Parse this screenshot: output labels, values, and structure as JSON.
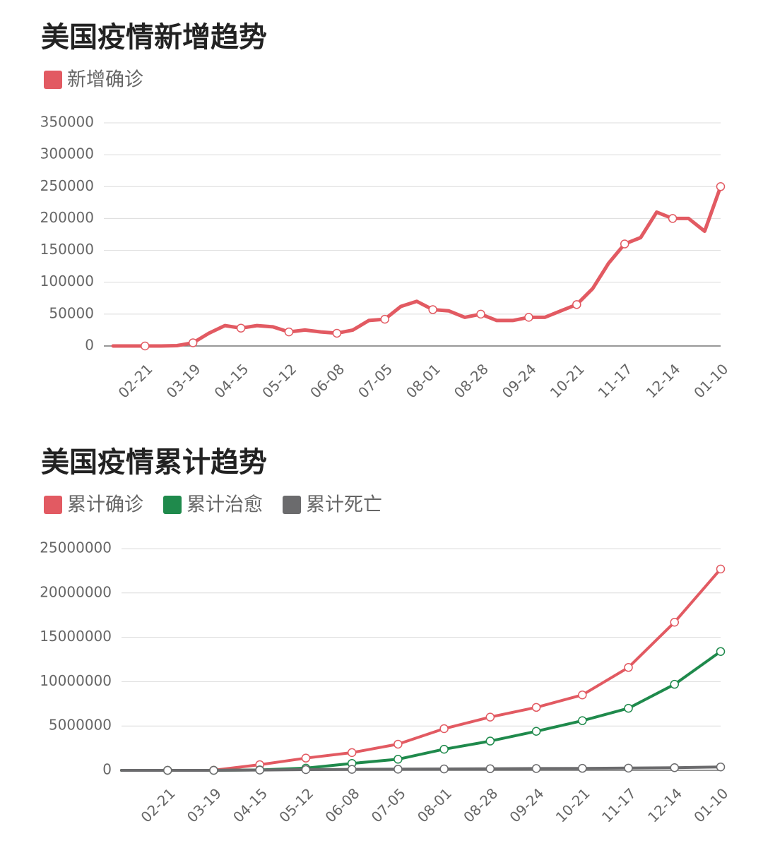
{
  "chart_data": [
    {
      "type": "line",
      "title": "美国疫情新增趋势",
      "categories": [
        null,
        null,
        "02-21",
        null,
        null,
        "03-19",
        null,
        null,
        "04-15",
        null,
        null,
        "05-12",
        null,
        null,
        "06-08",
        null,
        null,
        "07-05",
        null,
        null,
        "08-01",
        null,
        null,
        "08-28",
        null,
        null,
        "09-24",
        null,
        null,
        "10-21",
        null,
        null,
        "11-17",
        null,
        null,
        "12-14",
        null,
        null,
        "01-10"
      ],
      "series": [
        {
          "name": "新增确诊",
          "color": "#e25a62",
          "values": [
            0,
            0,
            0,
            0,
            500,
            5000,
            20000,
            32000,
            28000,
            32000,
            30000,
            22000,
            25000,
            22000,
            20000,
            25000,
            40000,
            42000,
            62000,
            70000,
            57000,
            55000,
            45000,
            50000,
            40000,
            40000,
            45000,
            45000,
            55000,
            65000,
            90000,
            130000,
            160000,
            170000,
            210000,
            200000,
            200000,
            180000,
            250000
          ]
        }
      ],
      "ylim": [
        0,
        350000
      ],
      "yticks": [
        0,
        50000,
        100000,
        150000,
        200000,
        250000,
        300000,
        350000
      ],
      "grid": true
    },
    {
      "type": "line",
      "title": "美国疫情累计趋势",
      "categories": [
        null,
        "02-21",
        "03-19",
        "04-15",
        "05-12",
        "06-08",
        "07-05",
        "08-01",
        "08-28",
        "09-24",
        "10-21",
        "11-17",
        "12-14",
        "01-10"
      ],
      "series": [
        {
          "name": "累计确诊",
          "color": "#e25a62",
          "values": [
            0,
            15,
            10000,
            640000,
            1380000,
            2000000,
            2950000,
            4700000,
            6000000,
            7100000,
            8500000,
            11600000,
            16700000,
            22700000
          ]
        },
        {
          "name": "累计治愈",
          "color": "#1f8a4c",
          "values": [
            0,
            0,
            100,
            50000,
            250000,
            780000,
            1250000,
            2380000,
            3300000,
            4400000,
            5600000,
            7000000,
            9700000,
            13400000
          ]
        },
        {
          "name": "累计死亡",
          "color": "#6b6b6d",
          "values": [
            0,
            0,
            150,
            30000,
            83000,
            112000,
            132000,
            157000,
            183000,
            205000,
            225000,
            252000,
            300000,
            380000
          ]
        }
      ],
      "ylim": [
        0,
        25000000
      ],
      "yticks": [
        0,
        5000000,
        10000000,
        15000000,
        20000000,
        25000000
      ],
      "grid": true
    }
  ]
}
